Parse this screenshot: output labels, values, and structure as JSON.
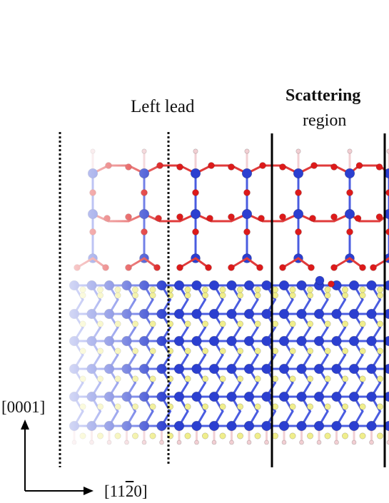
{
  "labels": {
    "left_lead": "Left lead",
    "scattering_line1": "Scattering",
    "scattering_line2": "region"
  },
  "axes": {
    "vertical": "[0001]",
    "horizontal_prefix": "[11",
    "horizontal_bar": "2",
    "horizontal_suffix": "0]"
  },
  "colors": {
    "si_atom": "#2b3fd0",
    "o_atom": "#dd1a1a",
    "c_atom": "#f0ee8c",
    "h_atom": "#f2cfd3",
    "bond_blue": "#4a5ce0",
    "bond_red": "#e03a3a",
    "lead_boundary": "#111111",
    "scatter_boundary": "#000000"
  }
}
